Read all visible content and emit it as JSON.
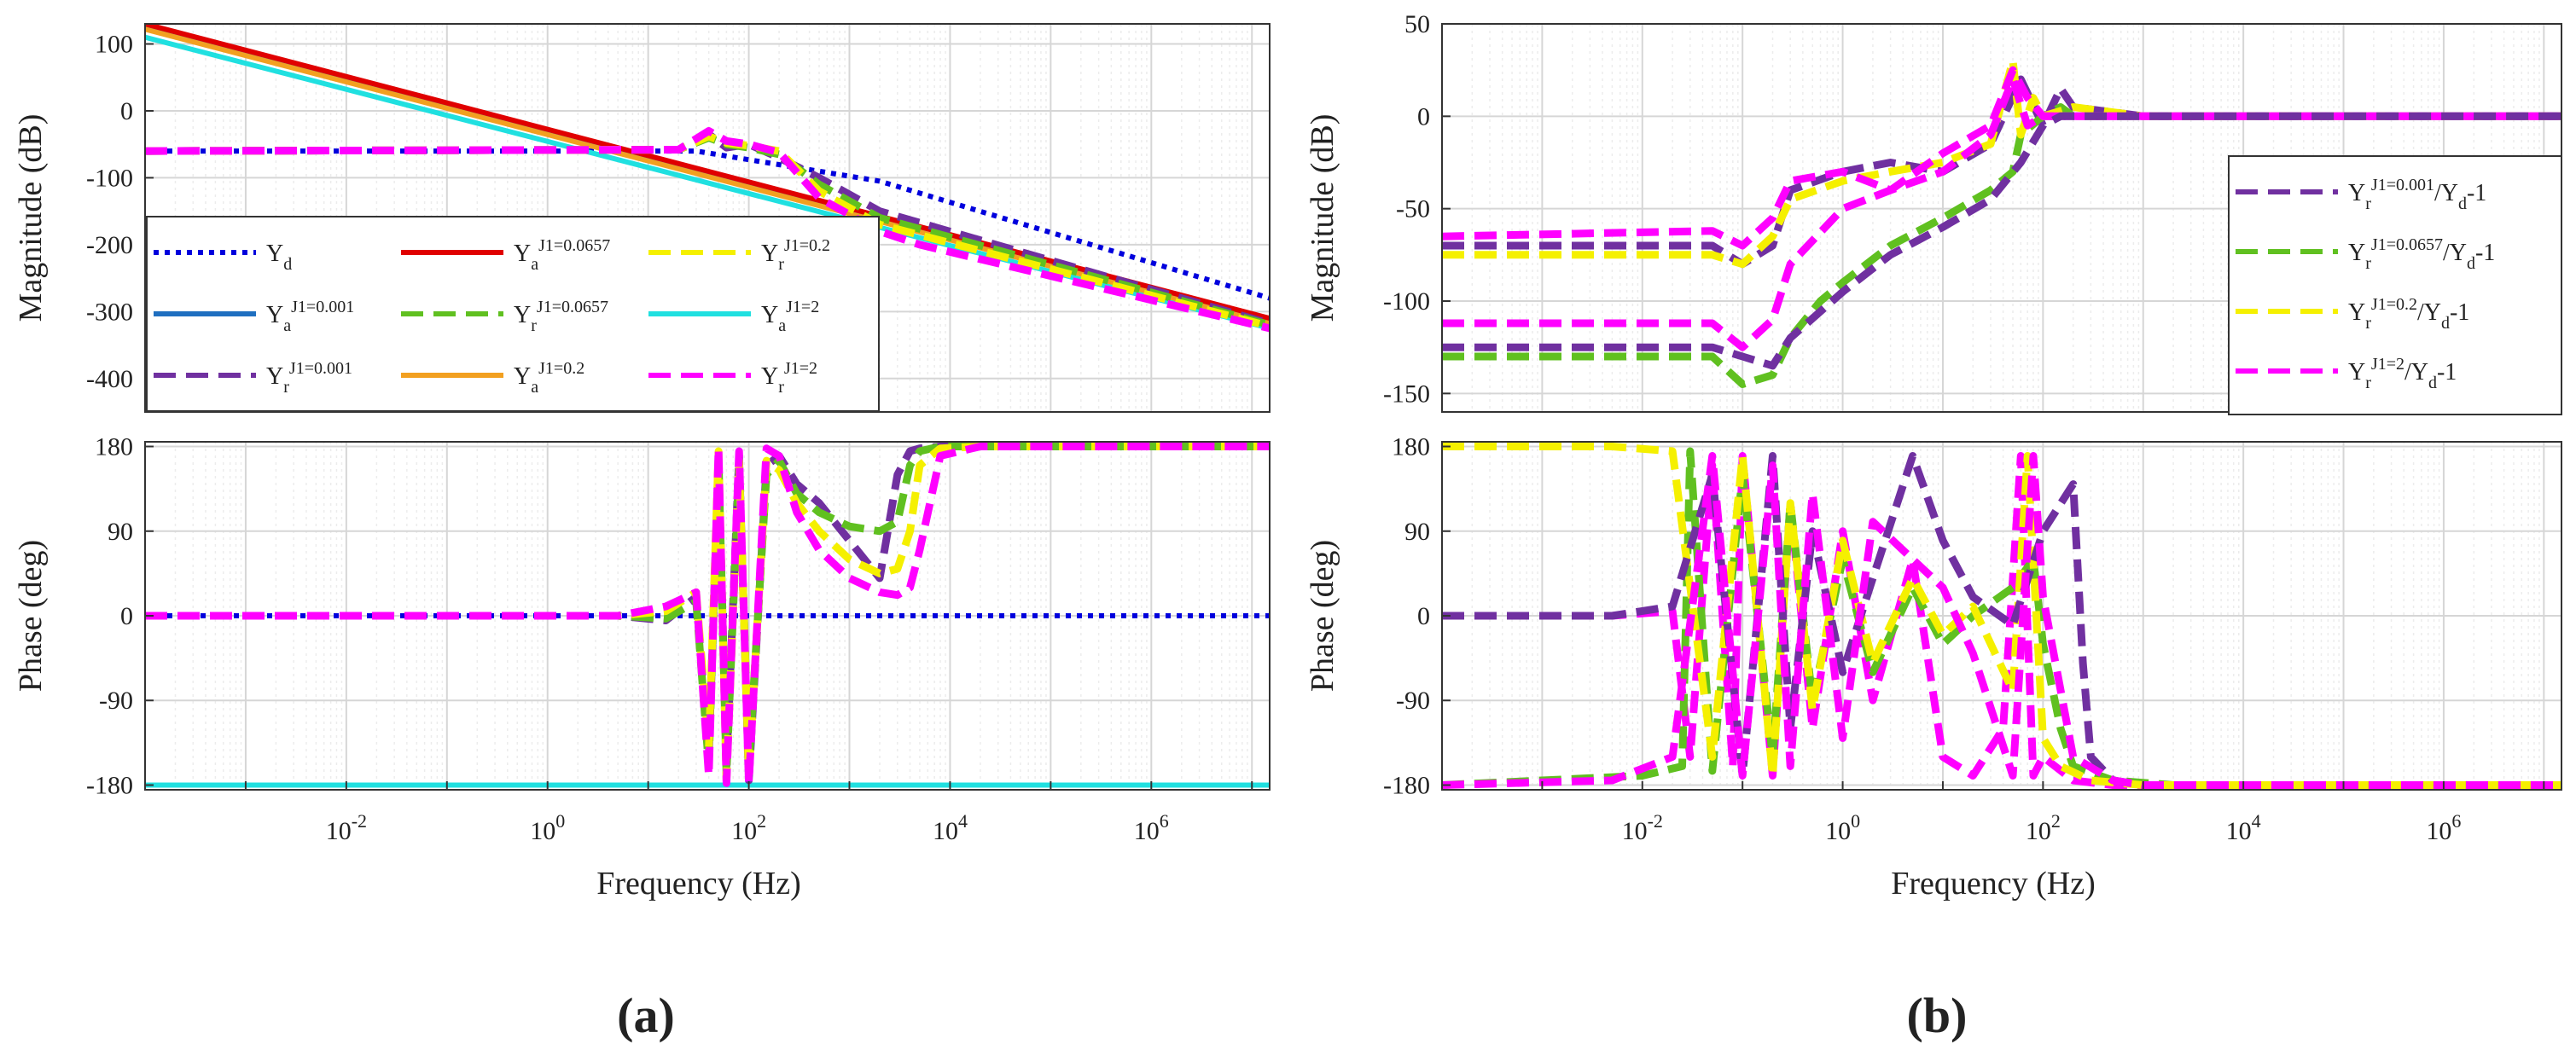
{
  "panel_labels": {
    "a": "(a)",
    "b": "(b)"
  },
  "chart_data": [
    {
      "id": "a-mag",
      "type": "line",
      "xscale": "log",
      "xlim": [
        0.0001,
        15000000
      ],
      "ylim": [
        -450,
        130
      ],
      "yticks": [
        100,
        0,
        -100,
        -200,
        -300,
        -400
      ],
      "ylabel": "Magnitude (dB)",
      "grid": true,
      "legend_position": "lower-left",
      "series": [
        {
          "key": "yd",
          "label": "Yd",
          "color": "#0000dd",
          "dash": "dot",
          "x": [
            0.0001,
            30,
            2000,
            15000000
          ],
          "y": [
            -60,
            -60,
            -105,
            -280
          ]
        },
        {
          "key": "ya0001",
          "label": "Ya J1=0.001",
          "color": "#1f6fc0",
          "dash": "solid",
          "x": [
            0.0001,
            15000000
          ],
          "y": [
            128,
            -312
          ]
        },
        {
          "key": "ya0657",
          "label": "Ya J1=0.0657",
          "color": "#e00000",
          "dash": "solid",
          "x": [
            0.0001,
            15000000
          ],
          "y": [
            130,
            -310
          ]
        },
        {
          "key": "ya02",
          "label": "Ya J1=0.2",
          "color": "#f2a020",
          "dash": "solid",
          "x": [
            0.0001,
            15000000
          ],
          "y": [
            122,
            -318
          ]
        },
        {
          "key": "ya2",
          "label": "Ya J1=2",
          "color": "#20e0e0",
          "dash": "solid",
          "x": [
            0.0001,
            15000000
          ],
          "y": [
            110,
            -325
          ]
        },
        {
          "key": "yr0001",
          "label": "Yr J1=0.001",
          "color": "#7030a0",
          "dash": "dash",
          "x": [
            0.0001,
            20,
            40,
            60,
            100,
            200,
            500,
            2000,
            15000000
          ],
          "y": [
            -60,
            -58,
            -35,
            -55,
            -50,
            -70,
            -100,
            -150,
            -318
          ]
        },
        {
          "key": "yr0657",
          "label": "Yr J1=0.0657",
          "color": "#60c020",
          "dash": "dash",
          "x": [
            0.0001,
            20,
            40,
            60,
            100,
            200,
            500,
            2000,
            15000000
          ],
          "y": [
            -60,
            -58,
            -40,
            -50,
            -55,
            -65,
            -110,
            -160,
            -320
          ]
        },
        {
          "key": "yr02",
          "label": "Yr J1=0.2",
          "color": "#f5f000",
          "dash": "dash",
          "x": [
            0.0001,
            20,
            40,
            60,
            100,
            200,
            500,
            2000,
            15000000
          ],
          "y": [
            -60,
            -58,
            -38,
            -48,
            -52,
            -60,
            -120,
            -170,
            -322
          ]
        },
        {
          "key": "yr2",
          "label": "Yr J1=2",
          "color": "#ff00ff",
          "dash": "dash",
          "x": [
            0.0001,
            20,
            40,
            60,
            100,
            200,
            500,
            2000,
            5000,
            15000000
          ],
          "y": [
            -60,
            -58,
            -30,
            -45,
            -50,
            -62,
            -130,
            -180,
            -200,
            -325
          ]
        }
      ]
    },
    {
      "id": "a-phase",
      "type": "line",
      "xscale": "log",
      "xlim": [
        0.0001,
        15000000
      ],
      "xticks": [
        "10-2",
        "100",
        "102",
        "104",
        "106"
      ],
      "xlabel": "Frequency (Hz)",
      "ylim": [
        -185,
        185
      ],
      "yticks": [
        180,
        90,
        0,
        -90,
        -180
      ],
      "ylabel": "Phase (deg)",
      "grid": true,
      "series": [
        {
          "key": "yd",
          "color": "#0000dd",
          "dash": "dot",
          "x": [
            0.0001,
            15000000
          ],
          "y": [
            0,
            0
          ]
        },
        {
          "key": "ya2",
          "color": "#20e0e0",
          "dash": "solid",
          "x": [
            0.0001,
            15000000
          ],
          "y": [
            -180,
            -180
          ]
        },
        {
          "key": "yr0001",
          "color": "#7030a0",
          "dash": "dash",
          "x": [
            0.0001,
            5,
            15,
            30,
            40,
            50,
            60,
            80,
            100,
            150,
            200,
            300,
            500,
            1000,
            2000,
            3000,
            4000,
            5000,
            8000,
            20000,
            15000000
          ],
          "y": [
            0,
            0,
            -5,
            20,
            -150,
            160,
            -160,
            170,
            -175,
            160,
            170,
            140,
            120,
            80,
            40,
            150,
            175,
            178,
            180,
            180,
            180
          ]
        },
        {
          "key": "yr0657",
          "color": "#60c020",
          "dash": "dash",
          "x": [
            0.0001,
            5,
            15,
            30,
            40,
            50,
            60,
            80,
            100,
            150,
            200,
            300,
            500,
            1000,
            2000,
            3000,
            4000,
            5000,
            8000,
            20000,
            15000000
          ],
          "y": [
            0,
            0,
            -3,
            15,
            -160,
            170,
            -170,
            160,
            -160,
            150,
            165,
            130,
            110,
            95,
            90,
            100,
            160,
            175,
            180,
            180,
            180
          ]
        },
        {
          "key": "yr02",
          "color": "#f5f000",
          "dash": "dash",
          "x": [
            0.0001,
            5,
            15,
            30,
            40,
            50,
            60,
            80,
            100,
            150,
            200,
            300,
            500,
            1000,
            2000,
            3000,
            4000,
            5000,
            8000,
            20000,
            15000000
          ],
          "y": [
            0,
            0,
            5,
            25,
            -140,
            175,
            -175,
            165,
            -170,
            165,
            155,
            120,
            90,
            60,
            45,
            50,
            90,
            160,
            178,
            180,
            180
          ]
        },
        {
          "key": "yr2",
          "color": "#ff00ff",
          "dash": "dash",
          "x": [
            0.0001,
            5,
            15,
            30,
            40,
            50,
            60,
            80,
            100,
            150,
            200,
            300,
            500,
            1000,
            2000,
            3000,
            4000,
            5000,
            8000,
            20000,
            15000000
          ],
          "y": [
            0,
            0,
            10,
            25,
            -170,
            178,
            -178,
            175,
            -178,
            178,
            170,
            110,
            70,
            40,
            25,
            22,
            30,
            70,
            170,
            180,
            180
          ]
        }
      ]
    },
    {
      "id": "b-mag",
      "type": "line",
      "xscale": "log",
      "xlim": [
        0.0001,
        15000000
      ],
      "ylim": [
        -160,
        50
      ],
      "yticks": [
        50,
        0,
        -50,
        -100,
        -150
      ],
      "ylabel": "Magnitude (dB)",
      "grid": true,
      "legend_position": "right",
      "series": [
        {
          "key": "r0001",
          "label": "Yr J1=0.001 / Yd - 1",
          "color": "#7030a0",
          "dash": "dash",
          "x": [
            0.0001,
            0.05,
            0.1,
            0.2,
            0.3,
            1,
            3,
            10,
            30,
            60,
            100,
            150,
            200,
            1000,
            15000000
          ],
          "y": [
            -70,
            -70,
            -80,
            -70,
            -40,
            -30,
            -25,
            -30,
            -15,
            20,
            -5,
            15,
            5,
            0,
            0
          ]
        },
        {
          "key": "r0657",
          "label": "Yr J1=0.0657 / Yd - 1",
          "color": "#60c020",
          "dash": "dash",
          "x": [
            0.0001,
            0.05,
            0.1,
            0.2,
            0.3,
            0.6,
            1,
            3,
            10,
            30,
            50,
            60,
            100,
            150,
            200,
            1000,
            15000000
          ],
          "y": [
            -130,
            -130,
            -145,
            -140,
            -120,
            -100,
            -90,
            -70,
            -55,
            -40,
            -30,
            -10,
            0,
            5,
            0,
            0,
            0
          ]
        },
        {
          "key": "r02",
          "label": "Yr J1=0.2 / Yd - 1",
          "color": "#f5f000",
          "dash": "dash",
          "x": [
            0.0001,
            0.05,
            0.1,
            0.2,
            0.3,
            1,
            3,
            10,
            30,
            50,
            60,
            80,
            100,
            200,
            1000,
            15000000
          ],
          "y": [
            -75,
            -75,
            -80,
            -65,
            -45,
            -35,
            -30,
            -25,
            -15,
            30,
            -10,
            10,
            0,
            5,
            0,
            0
          ]
        },
        {
          "key": "r2",
          "label": "Yr J1=2 / Yd - 1",
          "color": "#ff00ff",
          "dash": "dash",
          "x": [
            0.0001,
            0.05,
            0.1,
            0.2,
            0.3,
            1,
            3,
            10,
            30,
            50,
            70,
            100,
            200,
            1000,
            15000000
          ],
          "y": [
            -112,
            -112,
            -125,
            -110,
            -80,
            -50,
            -40,
            -30,
            -10,
            20,
            -5,
            0,
            0,
            0,
            0
          ]
        },
        {
          "key": "r2b",
          "color": "#ff00ff",
          "dash": "dash",
          "x": [
            0.0001,
            0.05,
            0.1,
            0.2,
            0.3,
            1,
            3,
            10,
            30,
            50,
            70,
            100,
            1000,
            15000000
          ],
          "y": [
            -65,
            -62,
            -70,
            -55,
            -35,
            -30,
            -40,
            -20,
            -5,
            25,
            10,
            0,
            0,
            0
          ]
        },
        {
          "key": "r2c",
          "color": "#7030a0",
          "dash": "dash",
          "x": [
            0.0001,
            0.05,
            0.1,
            0.2,
            0.3,
            1,
            3,
            10,
            30,
            60,
            100,
            150,
            1000,
            15000000
          ],
          "y": [
            -125,
            -125,
            -130,
            -135,
            -120,
            -95,
            -75,
            -60,
            -45,
            -25,
            -5,
            0,
            0,
            0
          ]
        }
      ]
    },
    {
      "id": "b-phase",
      "type": "line",
      "xscale": "log",
      "xlim": [
        0.0001,
        15000000
      ],
      "xticks": [
        "10-2",
        "100",
        "102",
        "104",
        "106"
      ],
      "xlabel": "Frequency (Hz)",
      "ylim": [
        -185,
        185
      ],
      "yticks": [
        180,
        90,
        0,
        -90,
        -180
      ],
      "ylabel": "Phase (deg)",
      "grid": true,
      "series": [
        {
          "key": "p1",
          "color": "#ff00ff",
          "dash": "dash",
          "x": [
            0.0001,
            0.005,
            0.02,
            0.03,
            0.05,
            0.08,
            0.1,
            0.2,
            0.3,
            0.5,
            1,
            2,
            5,
            10,
            20,
            40,
            60,
            80,
            100,
            200,
            500,
            2000,
            15000000
          ],
          "y": [
            0,
            0,
            5,
            -150,
            160,
            -160,
            170,
            -170,
            120,
            -120,
            90,
            -90,
            60,
            -150,
            -170,
            -120,
            170,
            -170,
            -150,
            -175,
            -180,
            -180,
            -180
          ]
        },
        {
          "key": "p2",
          "color": "#60c020",
          "dash": "dash",
          "x": [
            0.0001,
            0.01,
            0.025,
            0.03,
            0.05,
            0.1,
            0.2,
            0.3,
            0.5,
            1,
            2,
            5,
            10,
            20,
            50,
            80,
            100,
            150,
            200,
            500,
            2000,
            15000000
          ],
          "y": [
            -180,
            -170,
            -160,
            175,
            -165,
            150,
            -150,
            120,
            -90,
            60,
            -60,
            30,
            -30,
            0,
            30,
            60,
            -30,
            -120,
            -160,
            -175,
            -180,
            -180
          ]
        },
        {
          "key": "p3",
          "color": "#f5f000",
          "dash": "dash",
          "x": [
            0.0001,
            0.005,
            0.02,
            0.05,
            0.1,
            0.2,
            0.3,
            0.5,
            1,
            2,
            5,
            10,
            20,
            50,
            70,
            100,
            150,
            300,
            1000,
            15000000
          ],
          "y": [
            180,
            180,
            175,
            -150,
            170,
            -170,
            120,
            -100,
            80,
            -50,
            40,
            -20,
            10,
            -80,
            170,
            -130,
            -160,
            -175,
            -180,
            -180
          ]
        },
        {
          "key": "p4",
          "color": "#7030a0",
          "dash": "dash",
          "x": [
            0.0001,
            0.005,
            0.02,
            0.05,
            0.1,
            0.2,
            0.3,
            0.5,
            1,
            2,
            5,
            10,
            20,
            50,
            100,
            200,
            250,
            300,
            500,
            1000,
            15000000
          ],
          "y": [
            0,
            0,
            10,
            150,
            -170,
            170,
            -120,
            90,
            -60,
            40,
            170,
            80,
            20,
            -10,
            90,
            140,
            -50,
            -150,
            -175,
            -180,
            -180
          ]
        },
        {
          "key": "p5",
          "color": "#ff00ff",
          "dash": "dash",
          "x": [
            0.0001,
            0.005,
            0.02,
            0.05,
            0.1,
            0.2,
            0.3,
            0.5,
            1,
            2,
            5,
            10,
            20,
            50,
            80,
            100,
            200,
            500,
            1000,
            15000000
          ],
          "y": [
            -180,
            -175,
            -150,
            170,
            -170,
            160,
            -160,
            130,
            -130,
            100,
            60,
            30,
            -40,
            -170,
            170,
            20,
            -150,
            -175,
            -180,
            -180
          ]
        }
      ]
    }
  ]
}
